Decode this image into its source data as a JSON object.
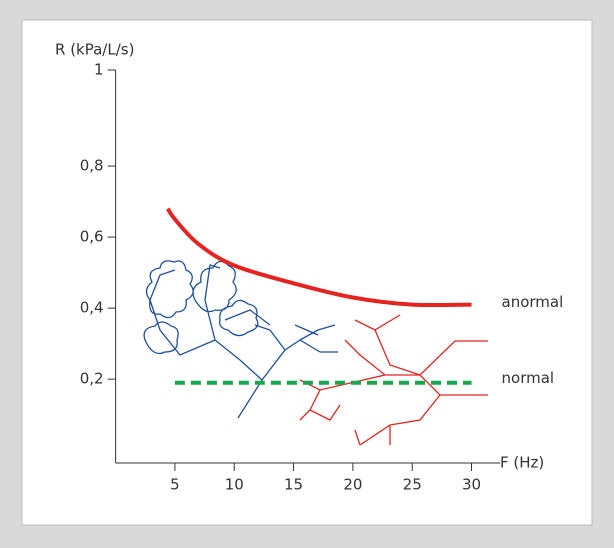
{
  "chart_data": {
    "type": "line",
    "y_label": "R (kPa/L/s)",
    "x_label": "F (Hz)",
    "xlim": [
      0,
      32.4
    ],
    "ylim": [
      -0.036,
      1
    ],
    "xticks": [
      5,
      10,
      15,
      20,
      25,
      30
    ],
    "yticks": [
      {
        "value": 0.2,
        "label": "0,2"
      },
      {
        "value": 0.4,
        "label": "0,4"
      },
      {
        "value": 0.6,
        "label": "0,6"
      },
      {
        "value": 0.8,
        "label": "0,8"
      },
      1
    ],
    "series": [
      {
        "name": "anormal",
        "color": "#e52421",
        "dashed": false,
        "x": [
          4.4,
          5,
          7,
          10,
          15,
          20,
          25,
          30
        ],
        "values": [
          0.68,
          0.65,
          0.58,
          0.52,
          0.47,
          0.43,
          0.41,
          0.41
        ]
      },
      {
        "name": "normal",
        "color": "#1aa64a",
        "dashed": true,
        "x": [
          5,
          30
        ],
        "values": [
          0.19,
          0.19
        ]
      }
    ]
  }
}
